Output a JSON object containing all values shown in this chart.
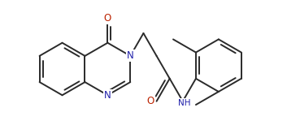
{
  "background_color": "#ffffff",
  "bond_color": "#2a2a2a",
  "nitrogen_color": "#2020aa",
  "oxygen_color": "#bb2200",
  "line_width": 1.4,
  "figsize": [
    3.53,
    1.7
  ],
  "dpi": 100,
  "xlim": [
    0,
    10.6
  ],
  "ylim": [
    0,
    5.1
  ]
}
